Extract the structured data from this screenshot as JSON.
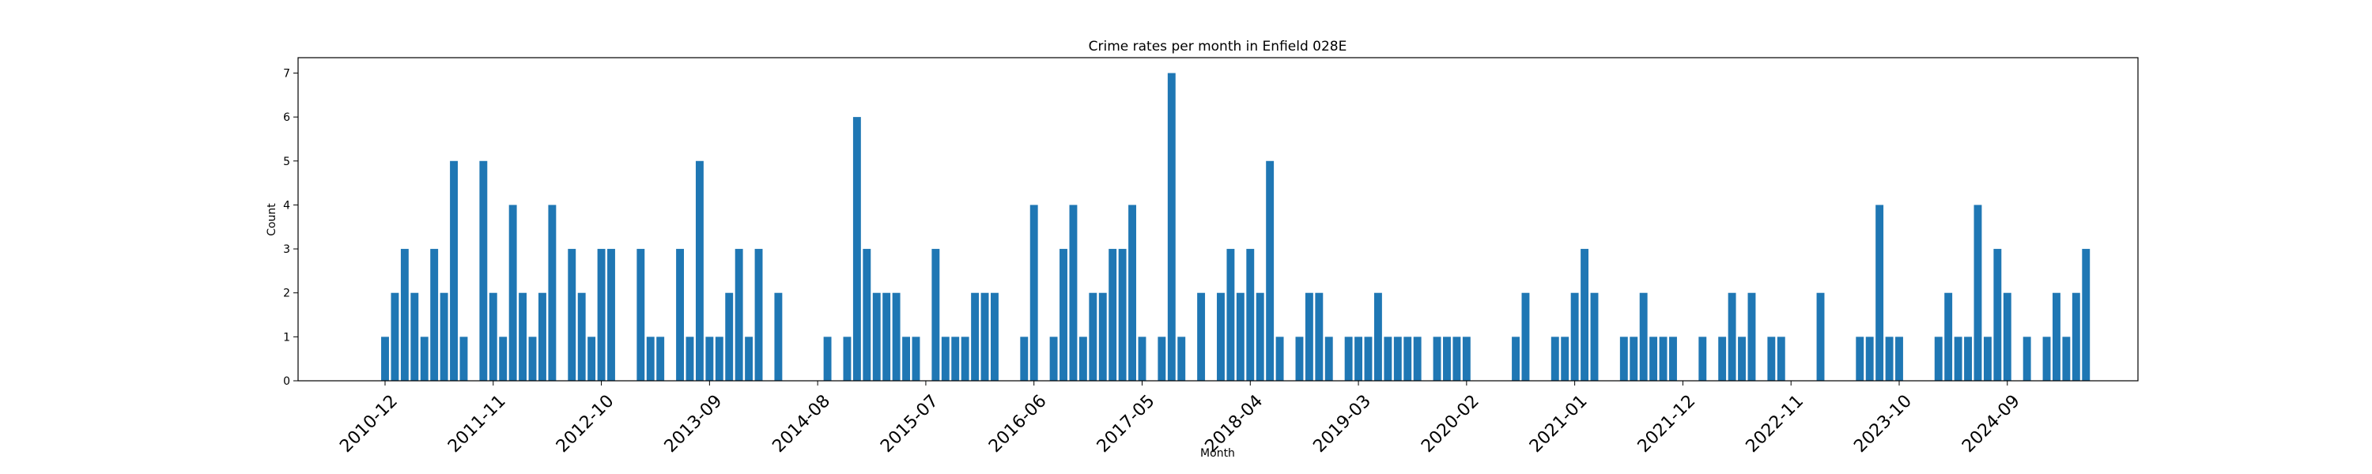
{
  "chart_data": {
    "type": "bar",
    "title": "Crime rates per month in Enfield 028E",
    "xlabel": "Month",
    "ylabel": "Count",
    "ylim": [
      0,
      7.35
    ],
    "yticks": [
      0,
      1,
      2,
      3,
      4,
      5,
      6,
      7
    ],
    "bar_color": "#1f77b4",
    "grid": false,
    "x_start": "2010-12",
    "xtick_labels": [
      "2010-12",
      "2011-11",
      "2012-10",
      "2013-09",
      "2014-08",
      "2015-07",
      "2016-06",
      "2017-05",
      "2018-04",
      "2019-03",
      "2020-02",
      "2021-01",
      "2021-12",
      "2022-11",
      "2023-10",
      "2024-09"
    ],
    "values": [
      1,
      2,
      3,
      2,
      1,
      3,
      2,
      5,
      1,
      0,
      5,
      2,
      1,
      4,
      2,
      1,
      2,
      4,
      0,
      3,
      2,
      1,
      3,
      3,
      0,
      0,
      3,
      1,
      1,
      0,
      3,
      1,
      5,
      1,
      1,
      2,
      3,
      1,
      3,
      0,
      2,
      0,
      0,
      0,
      0,
      1,
      0,
      1,
      6,
      3,
      2,
      2,
      2,
      1,
      1,
      0,
      3,
      1,
      1,
      1,
      2,
      2,
      2,
      0,
      0,
      1,
      4,
      0,
      1,
      3,
      4,
      1,
      2,
      2,
      3,
      3,
      4,
      1,
      0,
      1,
      7,
      1,
      0,
      2,
      0,
      2,
      3,
      2,
      3,
      2,
      5,
      1,
      0,
      1,
      2,
      2,
      1,
      0,
      1,
      1,
      1,
      2,
      1,
      1,
      1,
      1,
      0,
      1,
      1,
      1,
      1,
      0,
      0,
      0,
      0,
      1,
      2,
      0,
      0,
      1,
      1,
      2,
      3,
      2,
      0,
      0,
      1,
      1,
      2,
      1,
      1,
      1,
      0,
      0,
      1,
      0,
      1,
      2,
      1,
      2,
      0,
      1,
      1,
      0,
      0,
      0,
      2,
      0,
      0,
      0,
      1,
      1,
      4,
      1,
      1,
      0,
      0,
      0,
      1,
      2,
      1,
      1,
      4,
      1,
      3,
      2,
      0,
      1,
      0,
      1,
      2,
      1,
      2,
      3
    ]
  }
}
